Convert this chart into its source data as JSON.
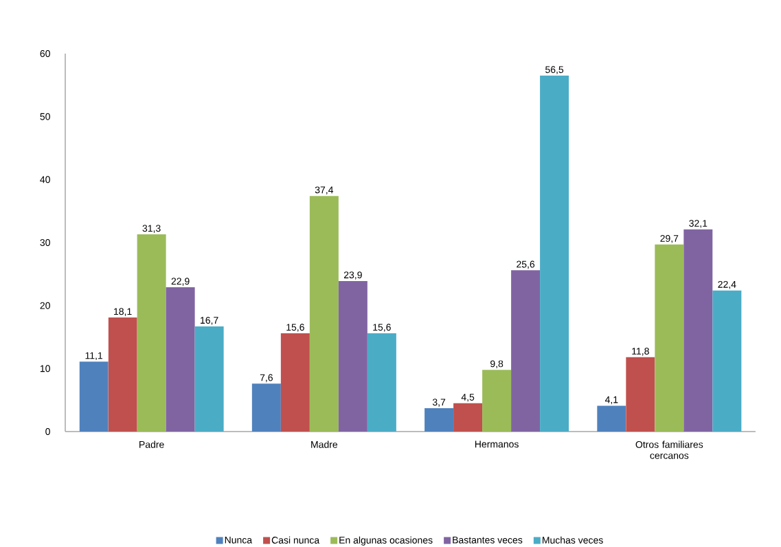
{
  "chart_data": {
    "type": "bar",
    "categories": [
      "Padre",
      "Madre",
      "Hermanos",
      "Otros familiares cercanos"
    ],
    "series": [
      {
        "name": "Nunca",
        "color": "#4f81bd",
        "values": [
          11.1,
          7.6,
          3.7,
          4.1
        ],
        "value_labels": [
          "11,1",
          "7,6",
          "3,7",
          "4,1"
        ]
      },
      {
        "name": "Casi nunca",
        "color": "#c0504d",
        "values": [
          18.1,
          15.6,
          4.5,
          11.8
        ],
        "value_labels": [
          "18,1",
          "15,6",
          "4,5",
          "11,8"
        ]
      },
      {
        "name": "En algunas ocasiones",
        "color": "#9bbb59",
        "values": [
          31.3,
          37.4,
          9.8,
          29.7
        ],
        "value_labels": [
          "31,3",
          "37,4",
          "9,8",
          "29,7"
        ]
      },
      {
        "name": "Bastantes veces",
        "color": "#8064a2",
        "values": [
          22.9,
          23.9,
          25.6,
          32.1
        ],
        "value_labels": [
          "22,9",
          "23,9",
          "25,6",
          "32,1"
        ]
      },
      {
        "name": "Muchas veces",
        "color": "#4bacc6",
        "values": [
          16.7,
          15.6,
          56.5,
          22.4
        ],
        "value_labels": [
          "16,7",
          "15,6",
          "56,5",
          "22,4"
        ]
      }
    ],
    "ylim": [
      0,
      60
    ],
    "yticks": [
      0,
      10,
      20,
      30,
      40,
      50,
      60
    ],
    "grid": false,
    "legend": "bottom"
  }
}
